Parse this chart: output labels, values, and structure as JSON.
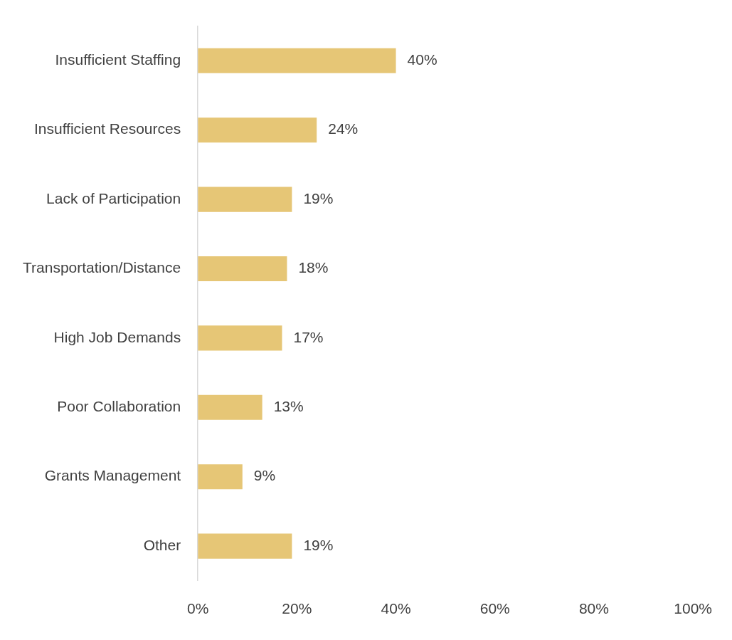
{
  "chart_data": {
    "type": "bar",
    "orientation": "horizontal",
    "categories": [
      "Insufficient Staffing",
      "Insufficient Resources",
      "Lack of Participation",
      "Transportation/Distance",
      "High Job Demands",
      "Poor Collaboration",
      "Grants Management",
      "Other"
    ],
    "values": [
      40,
      24,
      19,
      18,
      17,
      13,
      9,
      19
    ],
    "value_labels": [
      "40%",
      "24%",
      "19%",
      "18%",
      "17%",
      "13%",
      "9%",
      "19%"
    ],
    "color": "#e6c676",
    "xlim": [
      0,
      100
    ],
    "xticks": [
      {
        "value": 0,
        "label": "0%"
      },
      {
        "value": 20,
        "label": "20%"
      },
      {
        "value": 40,
        "label": "40%"
      },
      {
        "value": 60,
        "label": "60%"
      },
      {
        "value": 80,
        "label": "80%"
      },
      {
        "value": 100,
        "label": "100%"
      }
    ],
    "grid": false,
    "legend": false
  }
}
